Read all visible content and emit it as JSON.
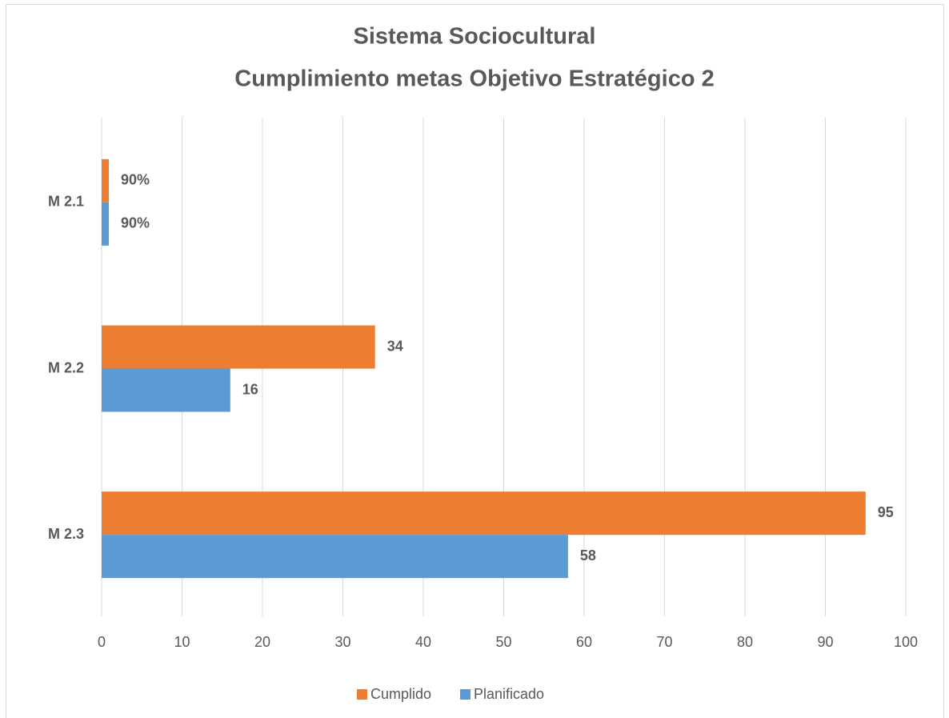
{
  "chart_data": {
    "type": "hbar",
    "title": [
      "Sistema Sociocultural",
      "Cumplimiento metas Objetivo Estratégico 2"
    ],
    "categories": [
      "M 2.1",
      "M 2.2",
      "M 2.3"
    ],
    "series": [
      {
        "name": "Cumplido",
        "color": "#ed7d31",
        "values": [
          0.9,
          34,
          95
        ],
        "value_labels": [
          "90%",
          "34",
          "95"
        ]
      },
      {
        "name": "Planificado",
        "color": "#5b9bd5",
        "values": [
          0.9,
          16,
          58
        ],
        "value_labels": [
          "90%",
          "16",
          "58"
        ]
      }
    ],
    "xlim": [
      0,
      100
    ],
    "xticks": [
      0,
      10,
      20,
      30,
      40,
      50,
      60,
      70,
      80,
      90,
      100
    ],
    "grid": true,
    "legend": "bottom"
  }
}
